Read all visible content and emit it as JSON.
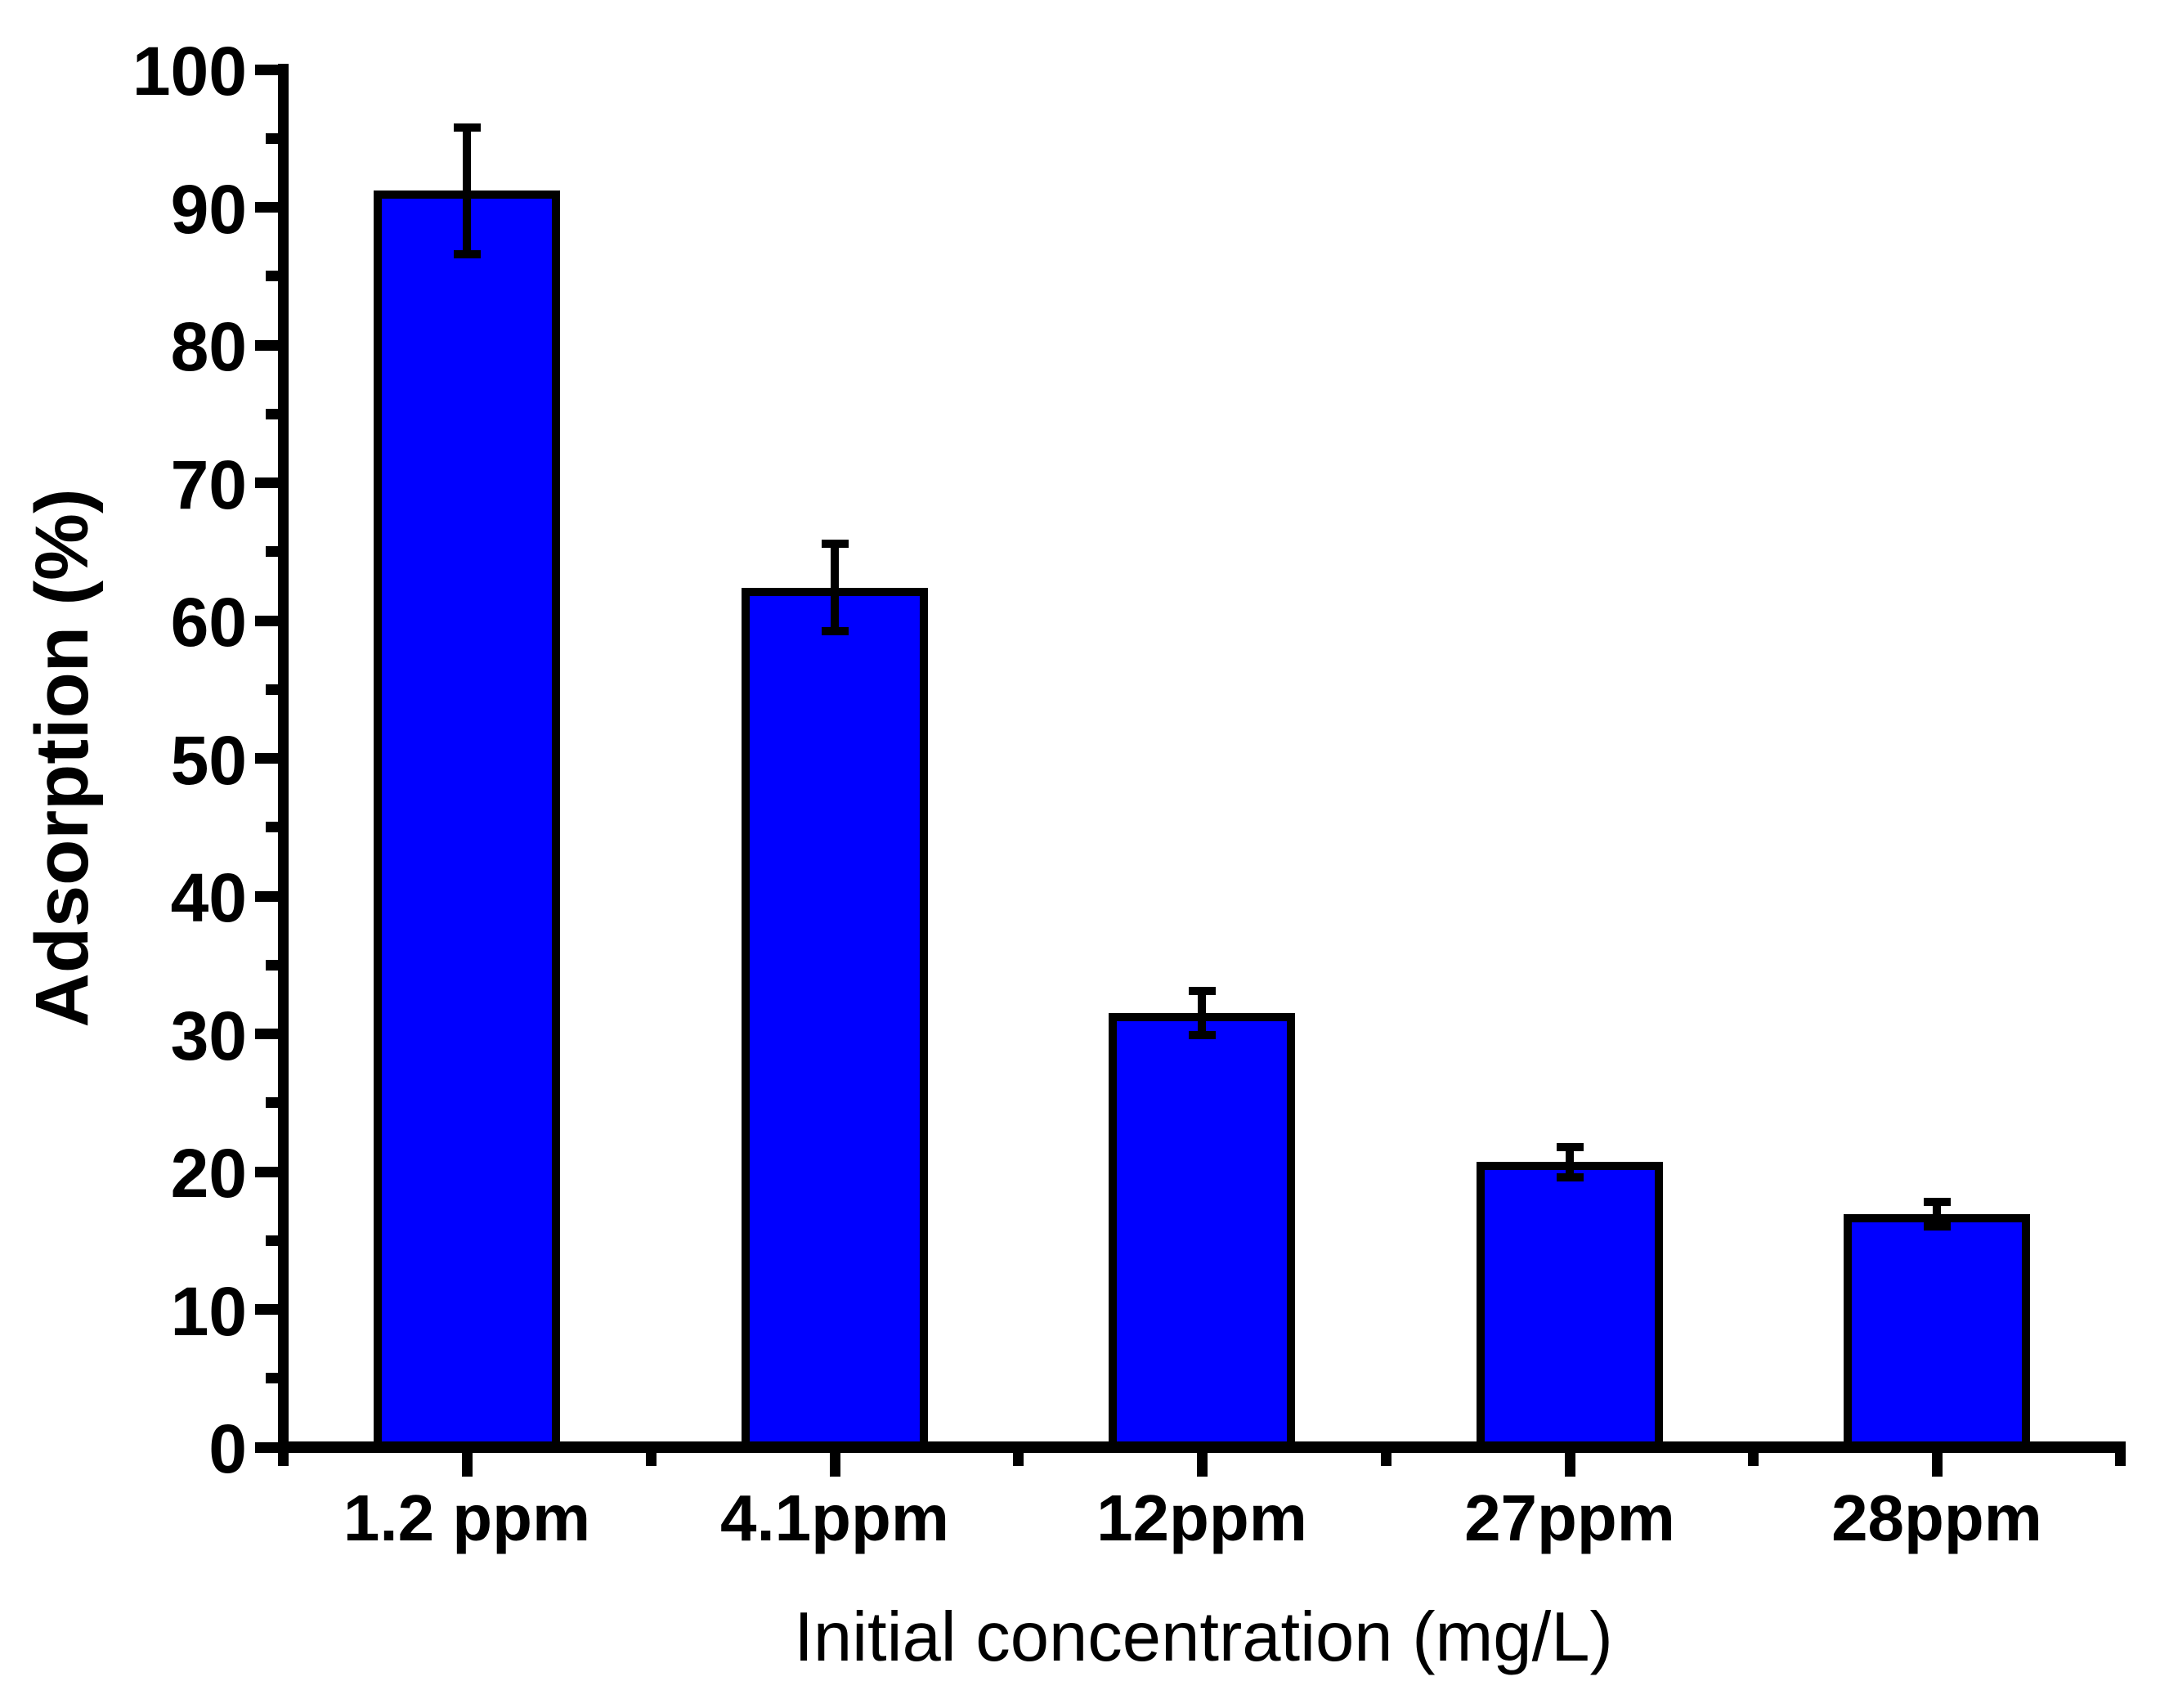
{
  "figure": {
    "background": "#ffffff"
  },
  "chart_data": {
    "type": "bar",
    "categories": [
      "1.2 ppm",
      "4.1ppm",
      "12ppm",
      "27ppm",
      "28ppm"
    ],
    "values": [
      91.2,
      62.4,
      31.5,
      20.7,
      16.9
    ],
    "errors": [
      4.6,
      3.2,
      1.6,
      1.1,
      0.9
    ],
    "title": "",
    "xlabel": "Initial concentration (mg/L)",
    "ylabel": "Adsorption (%)",
    "ylim": [
      0,
      100
    ],
    "ytick_major_step": 10,
    "ytick_minor_step": 5,
    "ytick_labels": [
      "0",
      "10",
      "20",
      "30",
      "40",
      "50",
      "60",
      "70",
      "80",
      "90",
      "100"
    ],
    "bar_fill": "#0000ff",
    "bar_border": "#000000",
    "error_color": "#000000",
    "axis_color": "#000000",
    "grid": false,
    "legend": "none"
  }
}
